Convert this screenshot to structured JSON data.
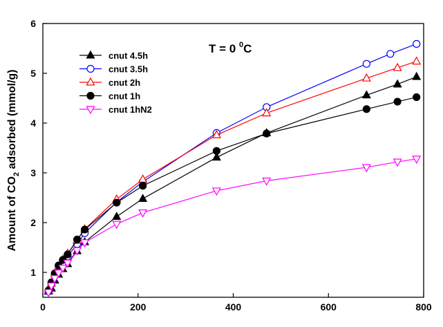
{
  "chart_data": {
    "type": "line",
    "title": "",
    "annotation": {
      "base": "T = 0 ",
      "sup": "0",
      "tail": "C"
    },
    "ylabel": {
      "pre": "Amount of CO",
      "sub": "2",
      "post": " adsorbed (mmol/g)"
    },
    "xlabel": "",
    "xlim": [
      0,
      800
    ],
    "ylim": [
      0.5,
      6
    ],
    "xticks": [
      0,
      200,
      400,
      600,
      800
    ],
    "yticks": [
      1,
      2,
      3,
      4,
      5,
      6
    ],
    "grid": false,
    "legend_position": "top-left",
    "series": [
      {
        "name": "cnut 4.5h",
        "color": "#000000",
        "marker": "triangle-up-filled",
        "x": [
          12,
          18,
          25,
          33,
          42,
          52,
          72,
          88,
          155,
          210,
          365,
          470,
          680,
          745,
          785
        ],
        "y": [
          0.62,
          0.68,
          0.84,
          0.96,
          1.07,
          1.17,
          1.43,
          1.61,
          2.12,
          2.48,
          3.31,
          3.8,
          4.56,
          4.78,
          4.93
        ]
      },
      {
        "name": "cnut 3.5h",
        "color": "#0000ff",
        "marker": "circle-open",
        "x": [
          12,
          18,
          25,
          33,
          42,
          52,
          72,
          88,
          155,
          210,
          365,
          470,
          680,
          730,
          785
        ],
        "y": [
          0.62,
          0.76,
          0.93,
          1.07,
          1.2,
          1.32,
          1.57,
          1.79,
          2.41,
          2.82,
          3.8,
          4.32,
          5.19,
          5.39,
          5.59
        ]
      },
      {
        "name": "cnut 2h",
        "color": "#ff0000",
        "marker": "triangle-up-open",
        "x": [
          12,
          18,
          25,
          33,
          42,
          52,
          72,
          88,
          155,
          210,
          365,
          470,
          680,
          745,
          785
        ],
        "y": [
          0.64,
          0.78,
          0.97,
          1.12,
          1.26,
          1.38,
          1.64,
          1.87,
          2.47,
          2.87,
          3.76,
          4.2,
          4.9,
          5.11,
          5.24
        ]
      },
      {
        "name": "cnut 1h",
        "color": "#000000",
        "marker": "circle-filled",
        "x": [
          12,
          18,
          25,
          33,
          42,
          52,
          72,
          88,
          155,
          210,
          365,
          470,
          680,
          745,
          785
        ],
        "y": [
          0.64,
          0.8,
          0.98,
          1.14,
          1.25,
          1.36,
          1.66,
          1.86,
          2.4,
          2.74,
          3.44,
          3.79,
          4.28,
          4.43,
          4.52
        ]
      },
      {
        "name": "cnut 1hN2",
        "color": "#ff00ff",
        "marker": "triangle-down-open",
        "x": [
          12,
          18,
          25,
          33,
          42,
          52,
          72,
          88,
          155,
          210,
          365,
          470,
          680,
          745,
          785
        ],
        "y": [
          0.6,
          0.73,
          0.88,
          0.99,
          1.09,
          1.19,
          1.44,
          1.6,
          1.97,
          2.2,
          2.64,
          2.84,
          3.11,
          3.22,
          3.28
        ]
      }
    ]
  }
}
